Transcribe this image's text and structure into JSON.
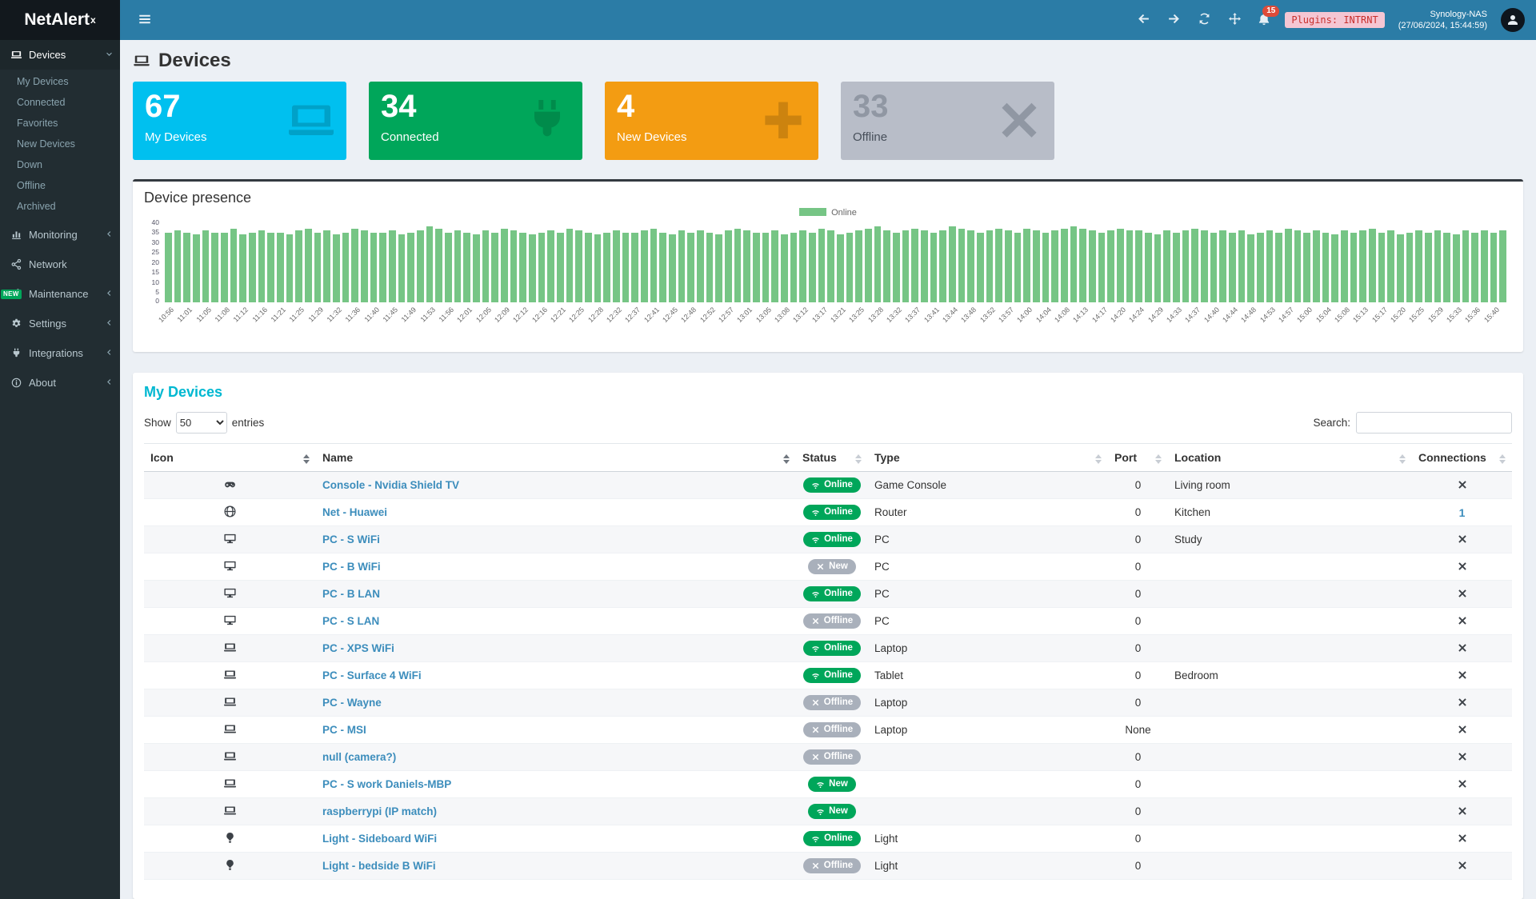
{
  "app": {
    "brand_net": "NetAlert",
    "brand_x": "x",
    "notifications_count": "15",
    "plugins_badge": "Plugins: INTRNT",
    "host_line1": "Synology-NAS",
    "host_line2": "(27/06/2024, 15:44:59)"
  },
  "colors": {
    "header_bg": "#2b7ca6",
    "logo_bg": "#12181d",
    "sidebar_bg": "#222d32",
    "sidebar_active_bg": "#1d272b",
    "content_bg": "#ecf0f5",
    "cyan": "#00c0ef",
    "green": "#00a65a",
    "orange": "#f39c12",
    "gray_box": "#b8bdc8",
    "bar_green": "#76c585",
    "badge_gray": "#a9b0bb",
    "link_blue": "#3c8dbc",
    "title_teal": "#00b8d1",
    "danger_red": "#dd4b39",
    "plugins_bg": "#f5c6d3",
    "plugins_text": "#c9302c"
  },
  "icons": {
    "hamburger": "bars",
    "back": "arrowleft",
    "forward": "arrowright",
    "refresh": "refresh",
    "move": "move",
    "notifications": "bell",
    "avatar": "user",
    "devices": "laptop",
    "monitoring": "chart",
    "network": "network",
    "maintenance": "wrench",
    "settings": "gear",
    "integrations": "plug",
    "about": "info",
    "online": "wifi",
    "offline-or-new": "x"
  },
  "sidebar": {
    "devices_label": "Devices",
    "devices_sub": [
      "My Devices",
      "Connected",
      "Favorites",
      "New Devices",
      "Down",
      "Offline",
      "Archived"
    ],
    "sections": [
      {
        "label": "Monitoring",
        "icon": "chart",
        "chevron": true,
        "badge": ""
      },
      {
        "label": "Network",
        "icon": "network",
        "chevron": false,
        "badge": ""
      },
      {
        "label": "Maintenance",
        "icon": "wrench",
        "chevron": true,
        "badge": "NEW"
      },
      {
        "label": "Settings",
        "icon": "gear",
        "chevron": true,
        "badge": ""
      },
      {
        "label": "Integrations",
        "icon": "plug",
        "chevron": true,
        "badge": ""
      },
      {
        "label": "About",
        "icon": "info",
        "chevron": true,
        "badge": ""
      }
    ]
  },
  "page": {
    "title": "Devices"
  },
  "summary_boxes": [
    {
      "value": "67",
      "label": "My Devices",
      "icon": "laptop",
      "color": "#00c0ef",
      "number_color": "#ffffff",
      "label_color": "#ffffff",
      "icon_color": "rgba(0,0,0,0.16)"
    },
    {
      "value": "34",
      "label": "Connected",
      "icon": "plug",
      "color": "#00a65a",
      "number_color": "#ffffff",
      "label_color": "#ffffff",
      "icon_color": "rgba(0,0,0,0.16)"
    },
    {
      "value": "4",
      "label": "New Devices",
      "icon": "plus",
      "color": "#f39c12",
      "number_color": "#ffffff",
      "label_color": "#ffffff",
      "icon_color": "rgba(0,0,0,0.16)"
    },
    {
      "value": "33",
      "label": "Offline",
      "icon": "x",
      "color": "#b8bdc8",
      "number_color": "#9097a3",
      "label_color": "#474f5a",
      "icon_color": "#9097a3"
    }
  ],
  "chart_data": {
    "type": "bar",
    "title": "Device presence",
    "legend": [
      "Online"
    ],
    "legend_position": "top-center",
    "bar_color": "#76c585",
    "grid": false,
    "ylim": [
      0,
      40
    ],
    "yticks": [
      0,
      5,
      10,
      15,
      20,
      25,
      30,
      35,
      40
    ],
    "bars_per_label": 2,
    "categories": [
      "10:56",
      "11:01",
      "11:05",
      "11:08",
      "11:12",
      "11:16",
      "11:21",
      "11:25",
      "11:29",
      "11:32",
      "11:36",
      "11:40",
      "11:45",
      "11:49",
      "11:53",
      "11:56",
      "12:01",
      "12:05",
      "12:09",
      "12:12",
      "12:16",
      "12:21",
      "12:25",
      "12:28",
      "12:32",
      "12:37",
      "12:41",
      "12:45",
      "12:48",
      "12:52",
      "12:57",
      "13:01",
      "13:05",
      "13:08",
      "13:12",
      "13:17",
      "13:21",
      "13:25",
      "13:28",
      "13:32",
      "13:37",
      "13:41",
      "13:44",
      "13:48",
      "13:52",
      "13:57",
      "14:00",
      "14:04",
      "14:08",
      "14:13",
      "14:17",
      "14:20",
      "14:24",
      "14:29",
      "14:33",
      "14:37",
      "14:40",
      "14:44",
      "14:48",
      "14:53",
      "14:57",
      "15:00",
      "15:04",
      "15:08",
      "15:13",
      "15:17",
      "15:20",
      "15:25",
      "15:29",
      "15:33",
      "15:36",
      "15:40"
    ],
    "values": [
      35,
      36,
      35,
      34,
      36,
      35,
      35,
      37,
      34,
      35,
      36,
      35,
      35,
      34,
      36,
      37,
      35,
      36,
      34,
      35,
      37,
      36,
      35,
      35,
      36,
      34,
      35,
      36,
      38,
      37,
      35,
      36,
      35,
      34,
      36,
      35,
      37,
      36,
      35,
      34,
      35,
      36,
      35,
      37,
      36,
      35,
      34,
      35,
      36,
      35,
      35,
      36,
      37,
      35,
      34,
      36,
      35,
      36,
      35,
      34,
      36,
      37,
      36,
      35,
      35,
      36,
      34,
      35,
      36,
      35,
      37,
      36,
      34,
      35,
      36,
      37,
      38,
      36,
      35,
      36,
      37,
      36,
      35,
      36,
      38,
      37,
      36,
      35,
      36,
      37,
      36,
      35,
      37,
      36,
      35,
      36,
      37,
      38,
      37,
      36,
      35,
      36,
      37,
      36,
      36,
      35,
      34,
      36,
      35,
      36,
      37,
      36,
      35,
      36,
      35,
      36,
      34,
      35,
      36,
      35,
      37,
      36,
      35,
      36,
      35,
      34,
      36,
      35,
      36,
      37,
      35,
      36,
      34,
      35,
      36,
      35,
      36,
      35,
      34,
      36,
      35,
      36,
      35,
      36
    ]
  },
  "devices_table": {
    "title": "My Devices",
    "show_label": "Show",
    "entries_value": "50",
    "entries_label": "entries",
    "search_label": "Search:",
    "columns": [
      "Icon",
      "Name",
      "Status",
      "Type",
      "Port",
      "Location",
      "Connections"
    ],
    "active_sort_columns": [
      0,
      1
    ],
    "rows": [
      {
        "icon": "gamepad",
        "name": "Console - Nvidia Shield TV",
        "status": "online",
        "status_label": "Online",
        "type": "Game Console",
        "port": "0",
        "location": "Living room",
        "connections": "x"
      },
      {
        "icon": "globe",
        "name": "Net - Huawei",
        "status": "online",
        "status_label": "Online",
        "type": "Router",
        "port": "0",
        "location": "Kitchen",
        "connections": "1"
      },
      {
        "icon": "desktop",
        "name": "PC - S WiFi",
        "status": "online",
        "status_label": "Online",
        "type": "PC",
        "port": "0",
        "location": "Study",
        "connections": "x"
      },
      {
        "icon": "desktop",
        "name": "PC - B WiFi",
        "status": "new_off",
        "status_label": "New",
        "type": "PC",
        "port": "0",
        "location": "",
        "connections": "x"
      },
      {
        "icon": "desktop",
        "name": "PC - B LAN",
        "status": "online",
        "status_label": "Online",
        "type": "PC",
        "port": "0",
        "location": "",
        "connections": "x"
      },
      {
        "icon": "desktop",
        "name": "PC - S LAN",
        "status": "offline",
        "status_label": "Offline",
        "type": "PC",
        "port": "0",
        "location": "",
        "connections": "x"
      },
      {
        "icon": "laptop",
        "name": "PC - XPS WiFi",
        "status": "online",
        "status_label": "Online",
        "type": "Laptop",
        "port": "0",
        "location": "",
        "connections": "x"
      },
      {
        "icon": "laptop",
        "name": "PC - Surface 4 WiFi",
        "status": "online",
        "status_label": "Online",
        "type": "Tablet",
        "port": "0",
        "location": "Bedroom",
        "connections": "x"
      },
      {
        "icon": "laptop",
        "name": "PC - Wayne",
        "status": "offline",
        "status_label": "Offline",
        "type": "Laptop",
        "port": "0",
        "location": "",
        "connections": "x"
      },
      {
        "icon": "laptop",
        "name": "PC - MSI",
        "status": "offline",
        "status_label": "Offline",
        "type": "Laptop",
        "port": "None",
        "location": "",
        "connections": "x"
      },
      {
        "icon": "laptop",
        "name": "null (camera?)",
        "status": "offline",
        "status_label": "Offline",
        "type": "",
        "port": "0",
        "location": "",
        "connections": "x"
      },
      {
        "icon": "laptop",
        "name": "PC - S work Daniels-MBP",
        "status": "new_on",
        "status_label": "New",
        "type": "",
        "port": "0",
        "location": "",
        "connections": "x"
      },
      {
        "icon": "laptop",
        "name": "raspberrypi (IP match)",
        "status": "new_on",
        "status_label": "New",
        "type": "",
        "port": "0",
        "location": "",
        "connections": "x"
      },
      {
        "icon": "bulb",
        "name": "Light - Sideboard WiFi",
        "status": "online",
        "status_label": "Online",
        "type": "Light",
        "port": "0",
        "location": "",
        "connections": "x"
      },
      {
        "icon": "bulb",
        "name": "Light - bedside B WiFi",
        "status": "offline",
        "status_label": "Offline",
        "type": "Light",
        "port": "0",
        "location": "",
        "connections": "x"
      }
    ]
  }
}
